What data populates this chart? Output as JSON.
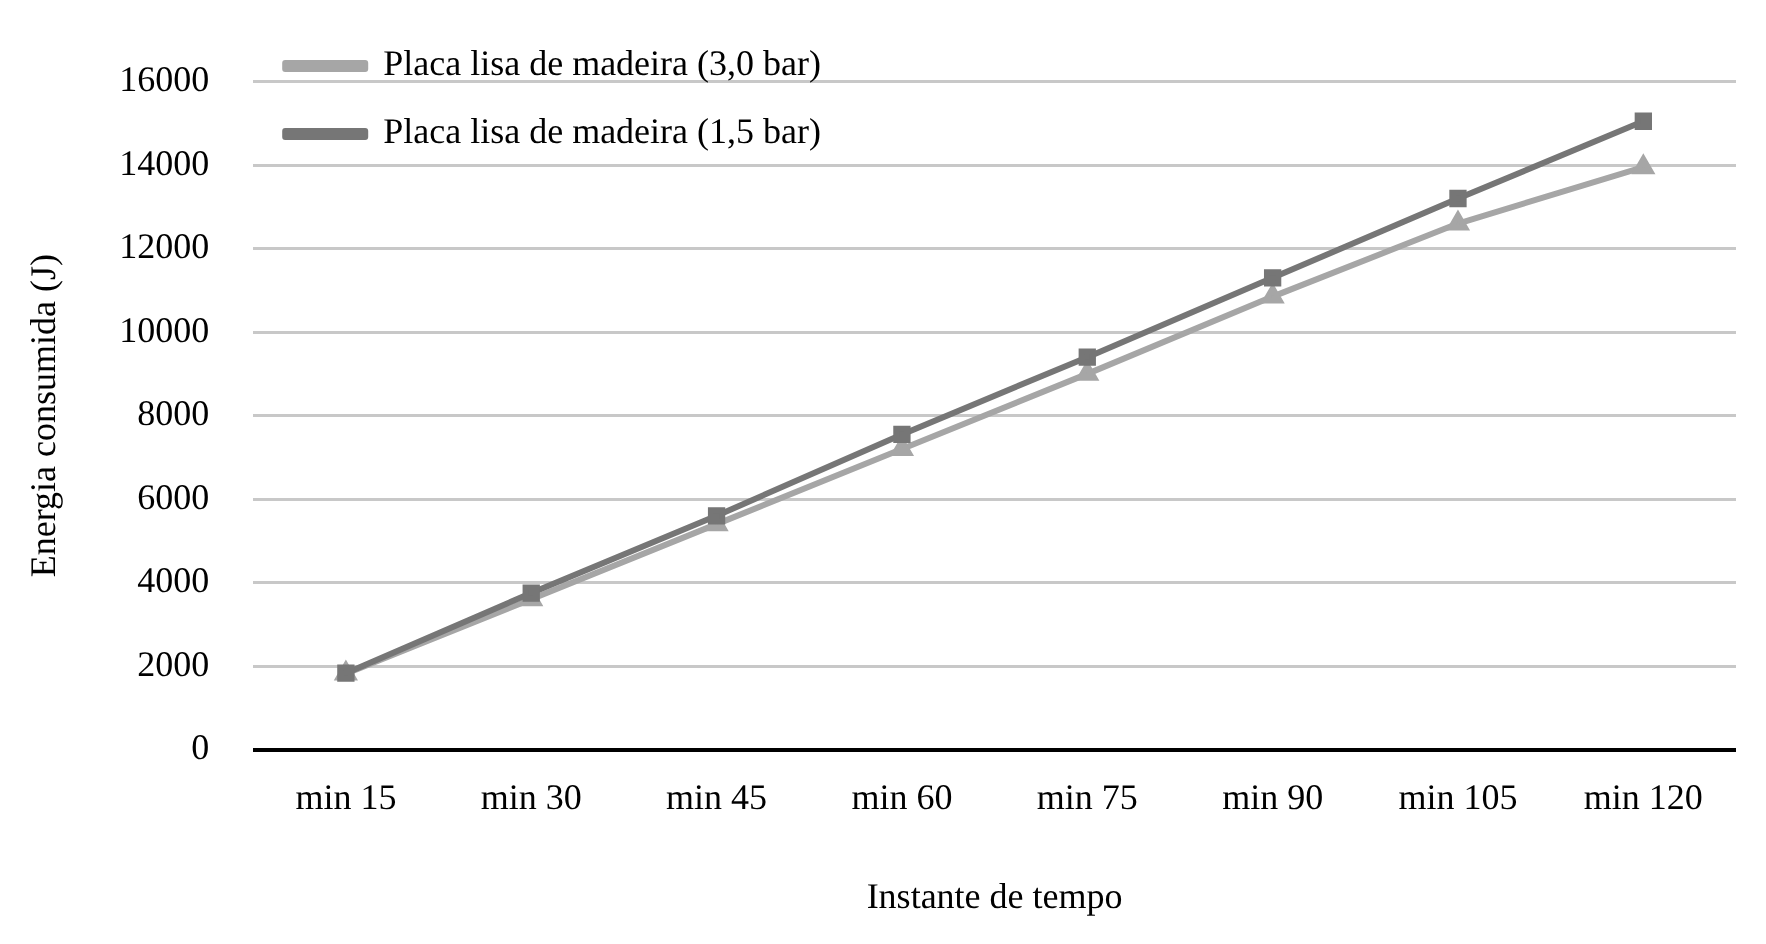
{
  "chart_data": {
    "type": "line",
    "xlabel": "Instante de tempo",
    "ylabel": "Energia consumida (J)",
    "categories": [
      "min 15",
      "min 30",
      "min 45",
      "min 60",
      "min 75",
      "min 90",
      "min 105",
      "min 120"
    ],
    "series": [
      {
        "name": "Placa lisa de madeira (3,0 bar)",
        "color": "#a6a6a6",
        "marker": "triangle",
        "values": [
          1820,
          3600,
          5400,
          7200,
          9000,
          10850,
          12600,
          13950
        ]
      },
      {
        "name": "Placa lisa de madeira (1,5 bar)",
        "color": "#767676",
        "marker": "square",
        "values": [
          1830,
          3750,
          5600,
          7550,
          9400,
          11300,
          13200,
          15050
        ]
      }
    ],
    "ylim": [
      0,
      16000
    ],
    "yticks": [
      0,
      2000,
      4000,
      6000,
      8000,
      10000,
      12000,
      14000,
      16000
    ],
    "grid": "y",
    "legend": "top left",
    "line_style": "solid"
  }
}
